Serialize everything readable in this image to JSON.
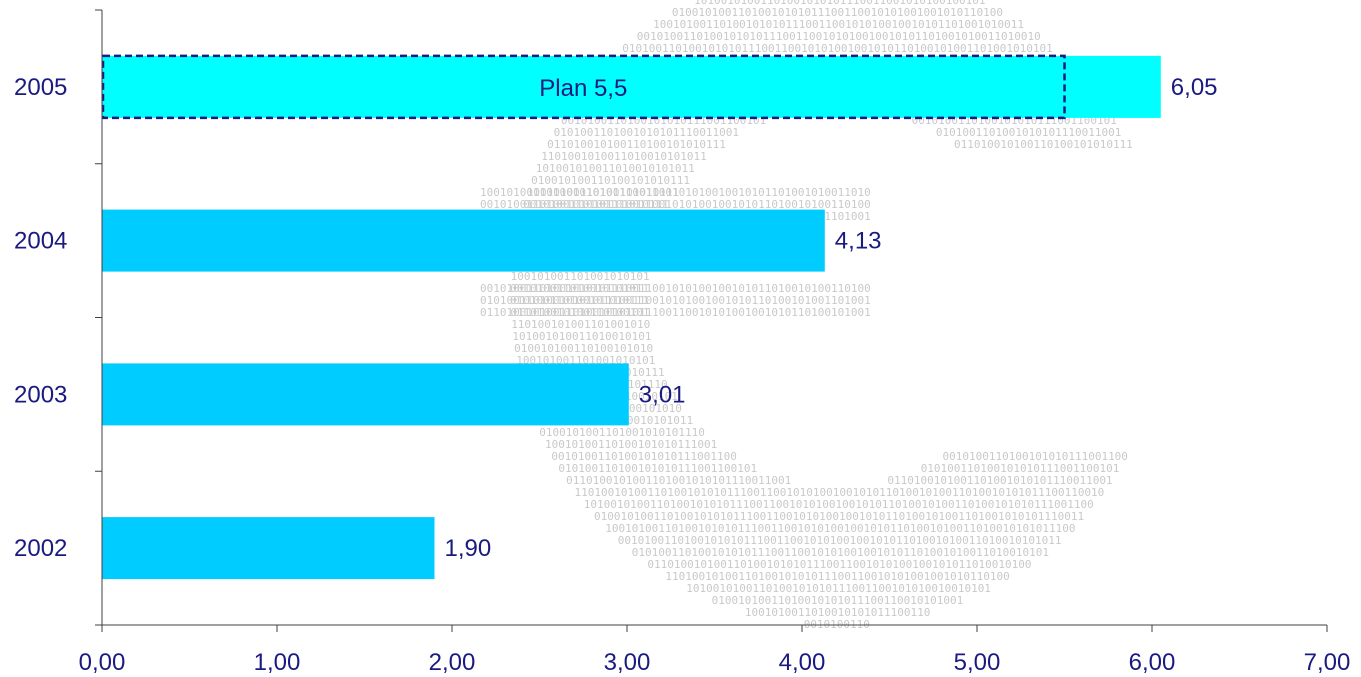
{
  "chart_data": {
    "type": "bar",
    "orientation": "horizontal",
    "categories": [
      "2005",
      "2004",
      "2003",
      "2002"
    ],
    "values": [
      6.05,
      4.13,
      3.01,
      1.9
    ],
    "value_labels": [
      "6,05",
      "4,13",
      "3,01",
      "1,90"
    ],
    "plan": {
      "category": "2005",
      "value": 5.5,
      "label": "Plan 5,5"
    },
    "xlim": [
      0,
      7
    ],
    "xticks": [
      0,
      1,
      2,
      3,
      4,
      5,
      6,
      7
    ],
    "xtick_labels": [
      "0,00",
      "1,00",
      "2,00",
      "3,00",
      "4,00",
      "5,00",
      "6,00",
      "7,00"
    ],
    "title": "",
    "xlabel": "",
    "ylabel": "",
    "grid": false,
    "legend": "none",
    "colors": {
      "highlight_bar": "#00ffff",
      "bar": "#00ccff",
      "text": "#1a1a80",
      "plan_border": "#1a1a80",
      "axis": "#404040",
      "background_pattern": "#c9c9c9"
    }
  }
}
